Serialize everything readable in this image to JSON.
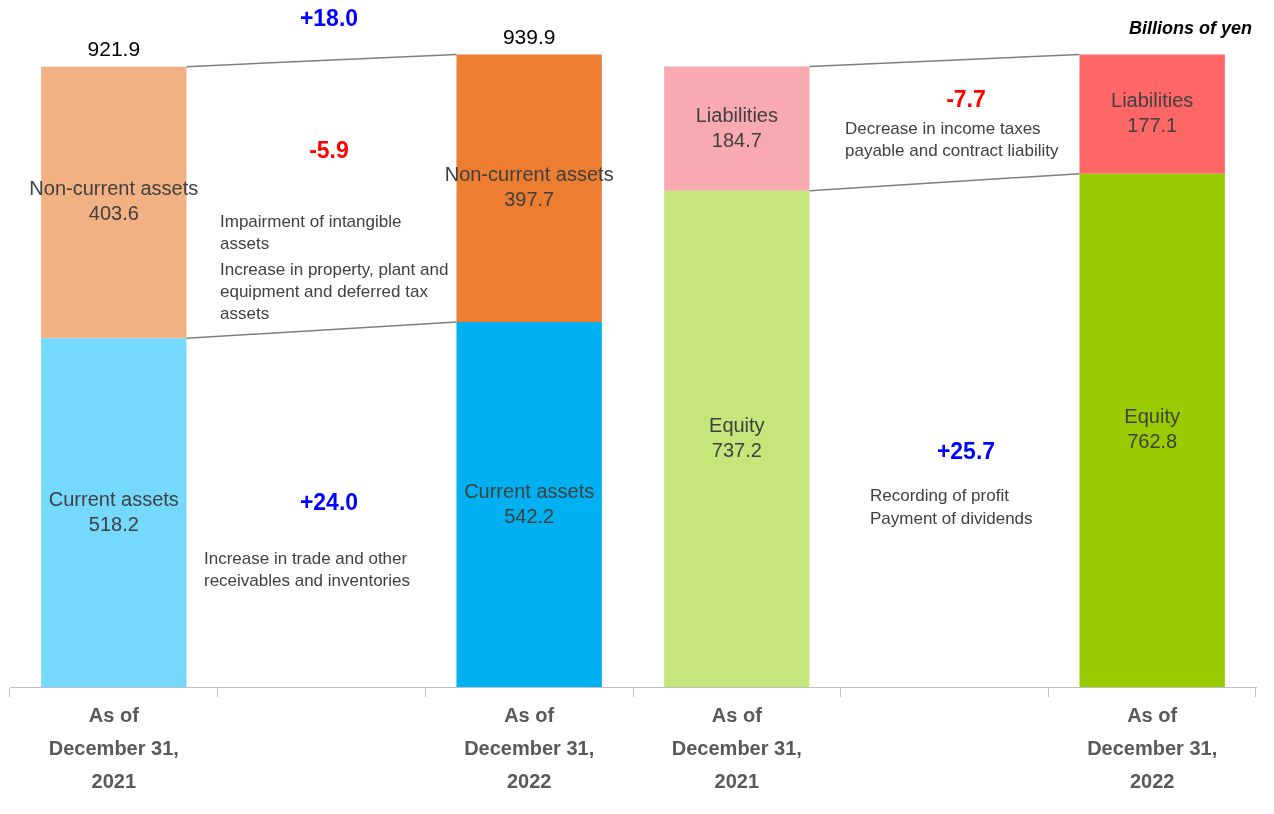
{
  "chart_data": {
    "type": "bar",
    "stacked": true,
    "ylabel": "Billions of yen",
    "categories": [
      "As of December 31, 2021",
      null,
      "As of December 31, 2022",
      "As of December 31, 2021",
      null,
      "As of December 31, 2022"
    ],
    "series": [
      {
        "colors": [
          "#75d9fd",
          null,
          "#00b0f0",
          "#c4e67a",
          null,
          "#99cc00"
        ],
        "values": [
          518.2,
          null,
          542.2,
          737.2,
          null,
          762.8
        ],
        "value_labels": [
          "Current assets\n518.2",
          null,
          "Current assets\n542.2",
          "Equity\n737.2",
          null,
          "Equity\n762.8"
        ]
      },
      {
        "colors": [
          "#f2b183",
          null,
          "#ed7d31",
          "#f9aab0",
          null,
          "#ff6666"
        ],
        "values": [
          403.6,
          null,
          397.7,
          184.7,
          null,
          177.1
        ],
        "value_labels": [
          "Non-current assets\n403.6",
          null,
          "Non-current assets\n397.7",
          "Liabilities\n184.7",
          null,
          "Liabilities\n177.1"
        ]
      }
    ],
    "totals": [
      "921.9",
      null,
      "939.9",
      null,
      null,
      null
    ],
    "tick_labels": "x",
    "grid": false,
    "legend": false,
    "annotations": [
      "+18.0",
      "-5.9",
      "Impairment of intangible assets",
      "Increase in property, plant and equipment and deferred tax assets",
      "+24.0",
      "Increase in trade and other receivables and inventories",
      "-7.7",
      "Decrease in income taxes payable and contract liability",
      "+25.7",
      "Recording of profit",
      "Payment of dividends"
    ]
  }
}
